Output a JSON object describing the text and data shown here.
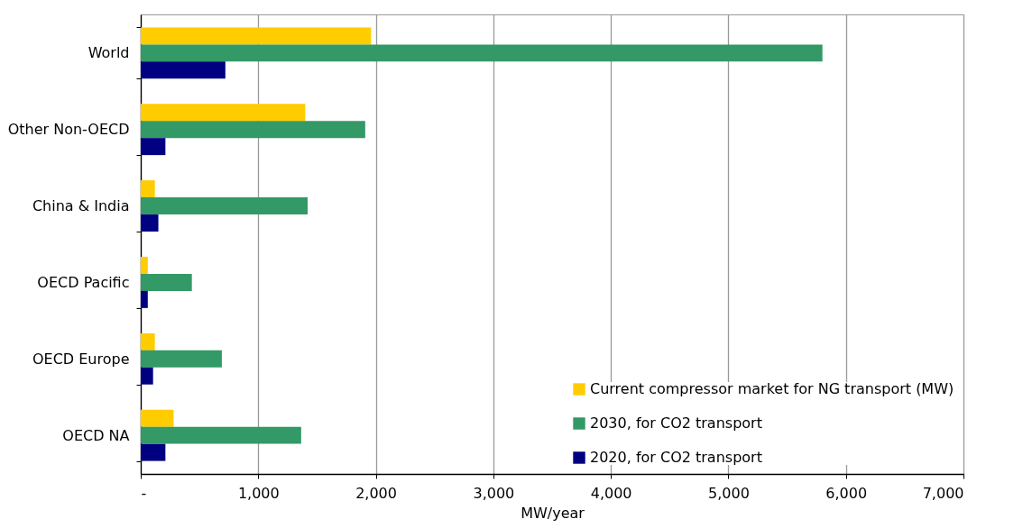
{
  "chart_data": {
    "type": "bar",
    "orientation": "horizontal",
    "xlabel": "MW/year",
    "categories": [
      "World",
      "Other Non-OECD",
      "China & India",
      "OECD Pacific",
      "OECD Europe",
      "OECD NA"
    ],
    "series": [
      {
        "name": "Current compressor market for NG transport (MW)",
        "color": "#ffcc00",
        "values": [
          1960,
          1400,
          120,
          60,
          120,
          280
        ]
      },
      {
        "name": "2030, for CO2 transport",
        "color": "#339966",
        "values": [
          5800,
          1910,
          1420,
          435,
          690,
          1365
        ]
      },
      {
        "name": "2020, for CO2 transport",
        "color": "#000080",
        "values": [
          720,
          210,
          150,
          60,
          105,
          210
        ]
      }
    ],
    "xlim": [
      0,
      7000
    ],
    "xticks": [
      {
        "value": 0,
        "label": "-"
      },
      {
        "value": 1000,
        "label": "1,000"
      },
      {
        "value": 2000,
        "label": "2,000"
      },
      {
        "value": 3000,
        "label": "3,000"
      },
      {
        "value": 4000,
        "label": "4,000"
      },
      {
        "value": 5000,
        "label": "5,000"
      },
      {
        "value": 6000,
        "label": "6,000"
      },
      {
        "value": 7000,
        "label": "7,000"
      }
    ],
    "grid": "x",
    "legend": "bottom right"
  }
}
